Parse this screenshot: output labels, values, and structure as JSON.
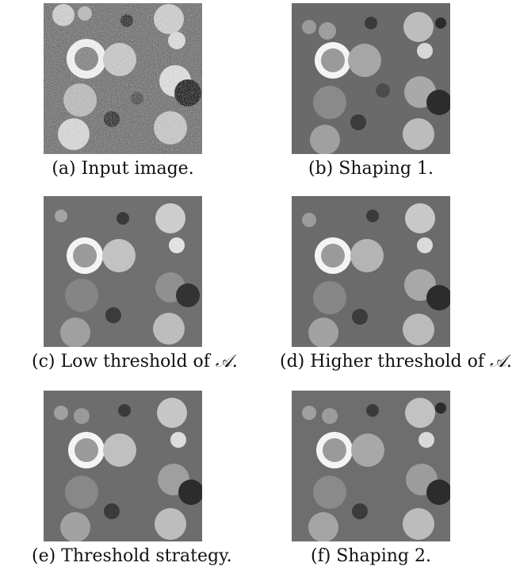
{
  "figure": {
    "panels": [
      {
        "id": "a",
        "caption": "(a) Input image.",
        "style": "noisy"
      },
      {
        "id": "b",
        "caption": "(b) Shaping 1.",
        "style": "segmented"
      },
      {
        "id": "c",
        "caption_prefix": "(c) Low threshold of ",
        "caption_symbol": "𝒜",
        "caption_suffix": ".",
        "style": "segmented"
      },
      {
        "id": "d",
        "caption_prefix": "(d) Higher threshold of ",
        "caption_symbol": "𝒜",
        "caption_suffix": ".",
        "style": "segmented"
      },
      {
        "id": "e",
        "caption": "(e) Threshold strategy.",
        "style": "segmented"
      },
      {
        "id": "f",
        "caption": "(f) Shaping 2.",
        "style": "segmented"
      }
    ]
  }
}
